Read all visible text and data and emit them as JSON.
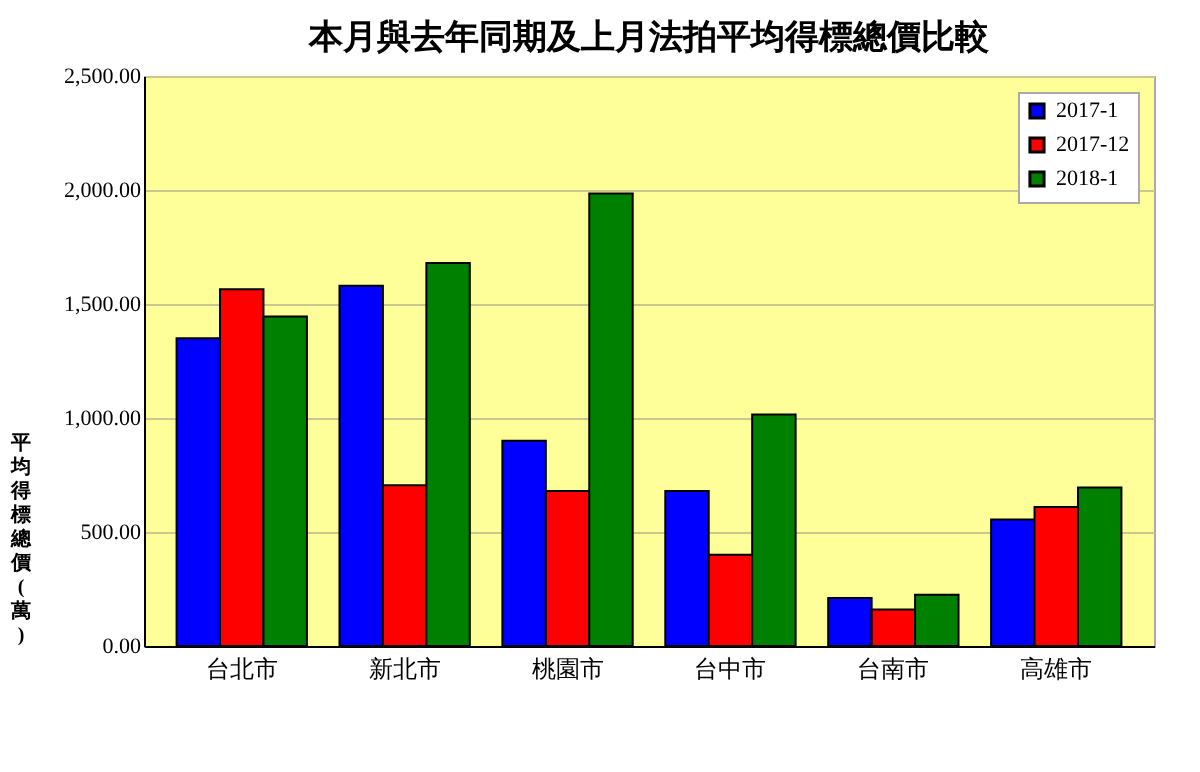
{
  "chart_data": {
    "type": "bar",
    "title": "本月與去年同期及上月法拍平均得標總價比較",
    "ylabel": "平均得標總價(萬)",
    "categories": [
      "台北市",
      "新北市",
      "桃園市",
      "台中市",
      "台南市",
      "高雄市"
    ],
    "series": [
      {
        "name": "2017-1",
        "color": "#0000ff",
        "values": [
          1350,
          1580,
          900,
          680,
          210,
          555
        ]
      },
      {
        "name": "2017-12",
        "color": "#ff0000",
        "values": [
          1565,
          705,
          680,
          400,
          160,
          610
        ]
      },
      {
        "name": "2018-1",
        "color": "#008000",
        "values": [
          1445,
          1680,
          1985,
          1015,
          225,
          695
        ]
      }
    ],
    "ylim": [
      0,
      2500
    ],
    "yticks": [
      {
        "value": 0,
        "label": "0.00"
      },
      {
        "value": 500,
        "label": "500.00"
      },
      {
        "value": 1000,
        "label": "1,000.00"
      },
      {
        "value": 1500,
        "label": "1,500.00"
      },
      {
        "value": 2000,
        "label": "2,000.00"
      },
      {
        "value": 2500,
        "label": "2,500.00"
      }
    ],
    "grid": "y",
    "legend": "top right"
  }
}
